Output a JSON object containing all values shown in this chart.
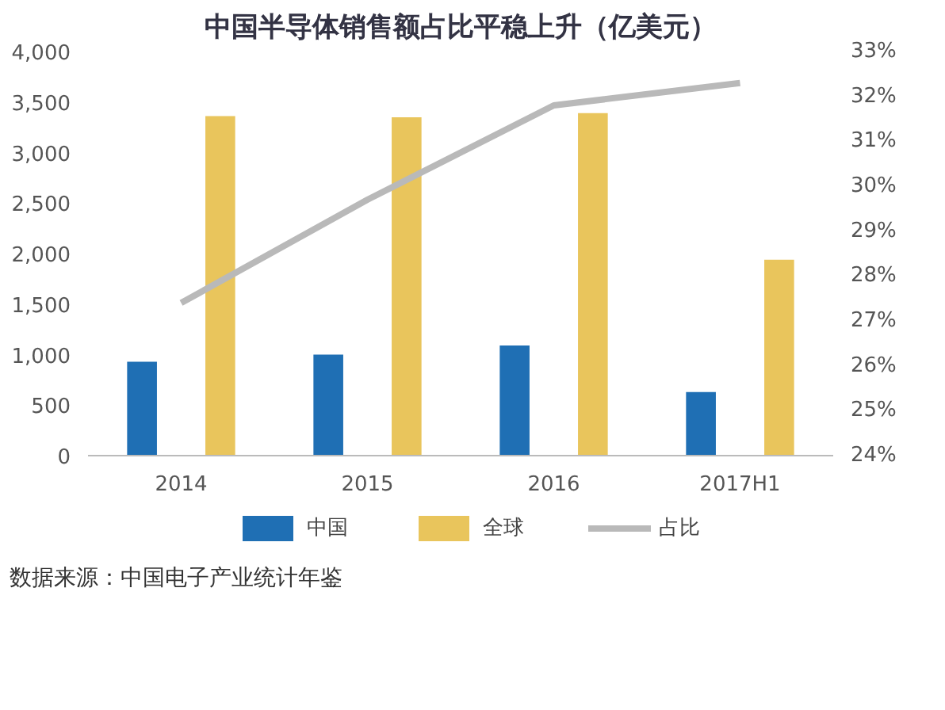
{
  "chart_data": {
    "type": "bar",
    "title": "中国半导体销售额占比平稳上升（亿美元）",
    "annotations": [
      "数据来源：中国电子产业统计年鉴"
    ],
    "categories": [
      "2014",
      "2015",
      "2016",
      "2017H1"
    ],
    "series": [
      {
        "name": "中国",
        "color": "#1f6fb4",
        "values": [
          930,
          1000,
          1090,
          630
        ]
      },
      {
        "name": "全球",
        "color": "#e9c55c",
        "values": [
          3360,
          3350,
          3390,
          1940
        ]
      },
      {
        "name": "占比",
        "color": "#b9b9b9",
        "type": "line",
        "axis": "y2",
        "values": [
          27.4,
          29.7,
          31.8,
          32.3
        ]
      }
    ],
    "ylim": [
      0,
      4000
    ],
    "yticks": [
      0,
      {
        "value": 500,
        "label": "500"
      },
      {
        "value": 1000,
        "label": "1,000"
      },
      {
        "value": 1500,
        "label": "1,500"
      },
      {
        "value": 2000,
        "label": "2,000"
      },
      {
        "value": 2500,
        "label": "2,500"
      },
      {
        "value": 3000,
        "label": "3,000"
      },
      {
        "value": 3500,
        "label": "3,500"
      },
      {
        "value": 4000,
        "label": "4,000"
      }
    ],
    "y2lim": [
      24,
      33
    ],
    "y2ticks": [
      {
        "value": 24,
        "label": "24%"
      },
      {
        "value": 25,
        "label": "25%"
      },
      {
        "value": 26,
        "label": "26%"
      },
      {
        "value": 27,
        "label": "27%"
      },
      {
        "value": 28,
        "label": "28%"
      },
      {
        "value": 29,
        "label": "29%"
      },
      {
        "value": 30,
        "label": "30%"
      },
      {
        "value": 31,
        "label": "31%"
      },
      {
        "value": 32,
        "label": "32%"
      },
      {
        "value": 33,
        "label": "33%"
      }
    ],
    "legend": "bottom"
  }
}
